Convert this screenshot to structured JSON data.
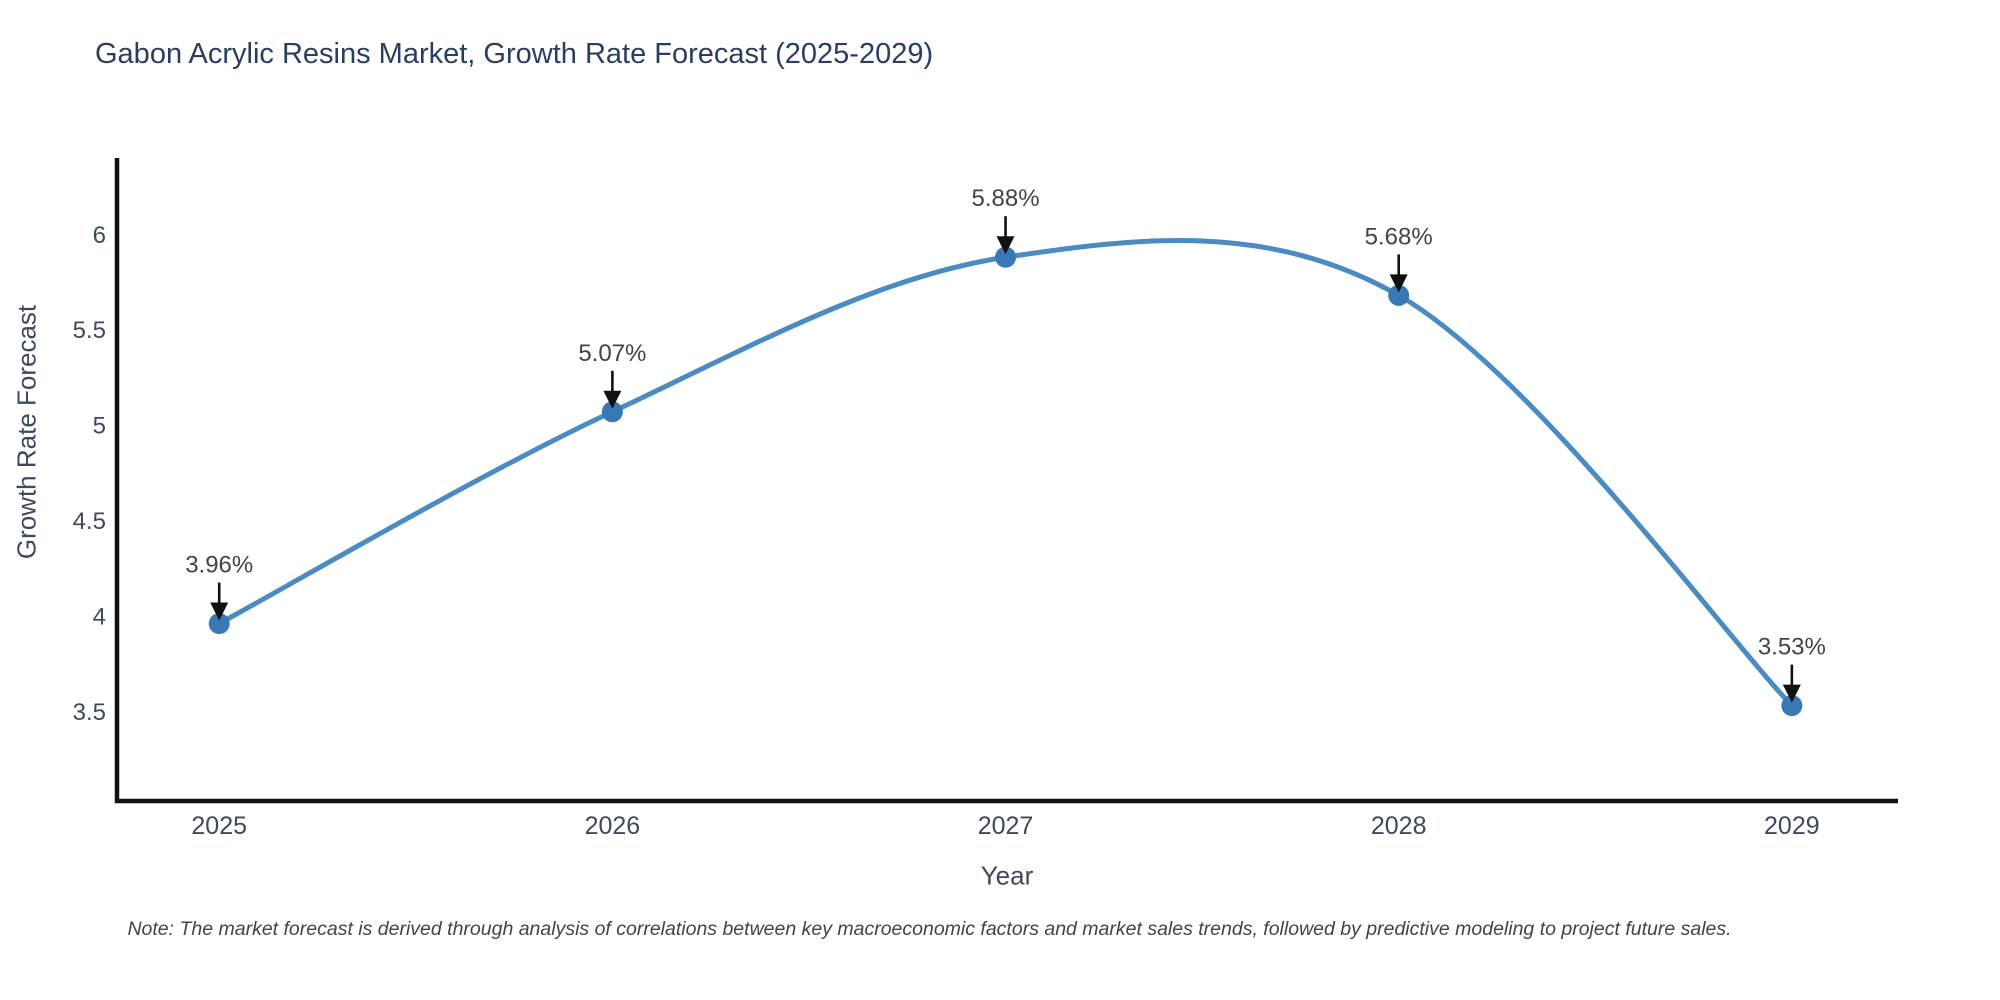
{
  "title": "Gabon Acrylic Resins Market, Growth Rate Forecast (2025-2029)",
  "note": "Note: The market forecast is derived through analysis of correlations between key macroeconomic factors and market sales trends, followed by predictive modeling to project future sales.",
  "chart_data": {
    "type": "line",
    "title": "Gabon Acrylic Resins Market, Growth Rate Forecast (2025-2029)",
    "xlabel": "Year",
    "ylabel": "Growth Rate Forecast",
    "categories": [
      "2025",
      "2026",
      "2027",
      "2028",
      "2029"
    ],
    "x": [
      2025,
      2026,
      2027,
      2028,
      2029
    ],
    "values": [
      3.96,
      5.07,
      5.88,
      5.68,
      3.53
    ],
    "point_labels": [
      "3.96%",
      "5.07%",
      "5.88%",
      "5.68%",
      "3.53%"
    ],
    "series_name": "Growth Rate Forecast",
    "line_shape": "spline",
    "grid": false,
    "legend": "none",
    "yticks": [
      3.5,
      4,
      4.5,
      5,
      5.5,
      6
    ],
    "ylim": [
      3.03,
      6.4
    ],
    "xlim": [
      2024.74,
      2029.27
    ],
    "line_color": "#4a8bc2",
    "marker_color": "#3878b4",
    "axis_color": "#111111",
    "arrow_color": "#111111",
    "tick_color": "#3d4a5c",
    "annotation_color": "#444444",
    "title_color": "#2a3f5f"
  }
}
